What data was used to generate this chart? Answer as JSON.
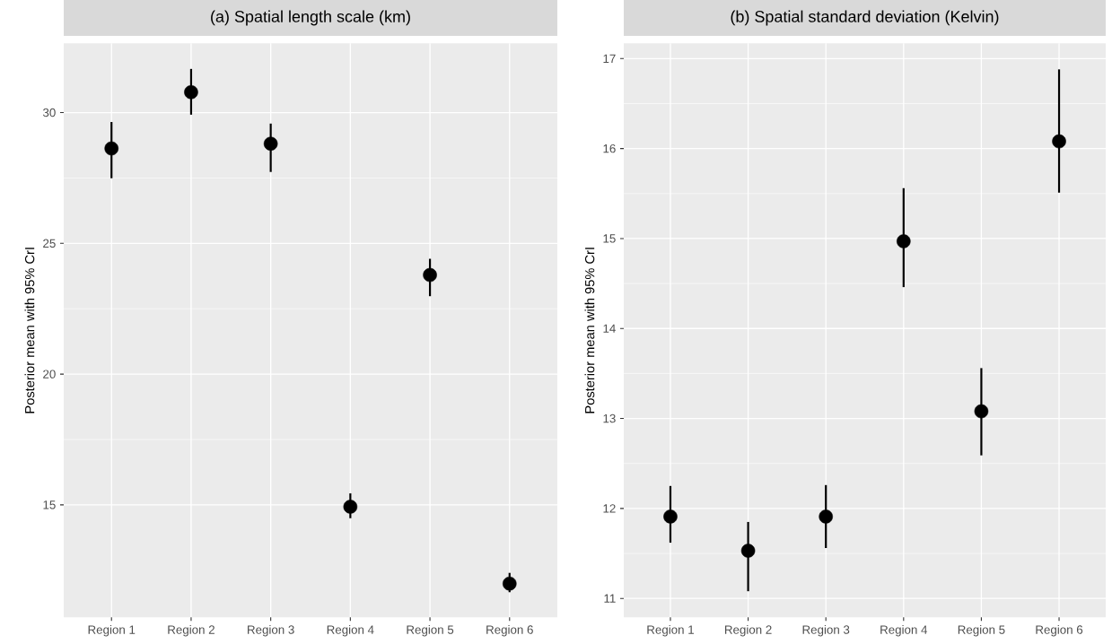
{
  "chart_data": [
    {
      "type": "scatter",
      "title": "(a) Spatial length scale (km)",
      "ylabel": "Posterior mean with 95% CrI",
      "categories": [
        "Region 1",
        "Region 2",
        "Region 3",
        "Region 4",
        "Region 5",
        "Region 6"
      ],
      "values": [
        28.63,
        30.78,
        28.81,
        14.93,
        23.79,
        11.99
      ],
      "errors": [
        [
          27.49,
          29.64
        ],
        [
          29.92,
          31.67
        ],
        [
          27.73,
          29.58
        ],
        [
          14.49,
          15.44
        ],
        [
          22.98,
          24.41
        ],
        [
          11.66,
          12.4
        ]
      ],
      "color": "#000000",
      "marker": "circle",
      "ylim": [
        10.7,
        32.65
      ],
      "yticks": [
        15,
        20,
        25,
        30
      ],
      "grid": true
    },
    {
      "type": "scatter",
      "title": "(b) Spatial standard deviation (Kelvin)",
      "ylabel": "Posterior mean with 95% CrI",
      "categories": [
        "Region 1",
        "Region 2",
        "Region 3",
        "Region 4",
        "Region 5",
        "Region 6"
      ],
      "values": [
        11.91,
        11.53,
        11.91,
        14.97,
        13.08,
        16.08
      ],
      "errors": [
        [
          11.62,
          12.25
        ],
        [
          11.08,
          11.85
        ],
        [
          11.56,
          12.26
        ],
        [
          14.46,
          15.56
        ],
        [
          12.59,
          13.56
        ],
        [
          15.51,
          16.88
        ]
      ],
      "color": "#000000",
      "marker": "circle",
      "ylim": [
        10.79,
        17.17
      ],
      "yticks": [
        11,
        12,
        13,
        14,
        15,
        16,
        17
      ],
      "grid": true
    }
  ]
}
